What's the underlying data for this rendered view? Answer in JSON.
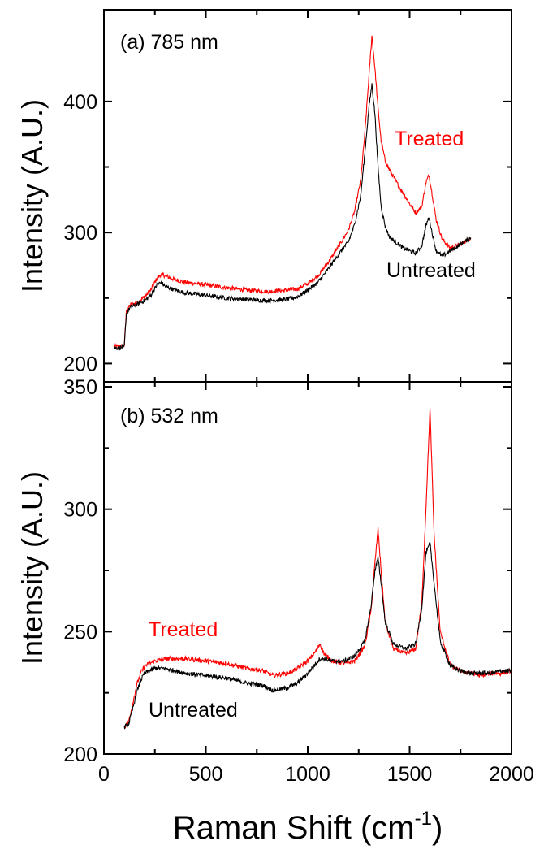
{
  "chart_data": [
    {
      "type": "line",
      "panel_label": "(a) 785 nm",
      "ylabel": "Intensity (A.U.)",
      "xlim": [
        0,
        2000
      ],
      "ylim": [
        186,
        470
      ],
      "yticks": [
        200,
        300,
        400
      ],
      "ytick_labels": [
        "200",
        "300",
        "400"
      ],
      "xticks": [
        0,
        500,
        1000,
        1500,
        2000
      ],
      "grid": false,
      "colors": {
        "Treated": "#ff0000",
        "Untreated": "#000000"
      },
      "series": [
        {
          "name": "Treated",
          "color": "#ff0000",
          "x": [
            50,
            80,
            100,
            110,
            130,
            160,
            200,
            230,
            260,
            280,
            300,
            350,
            400,
            500,
            600,
            700,
            800,
            900,
            950,
            1000,
            1050,
            1100,
            1150,
            1200,
            1230,
            1260,
            1280,
            1300,
            1315,
            1330,
            1345,
            1360,
            1380,
            1400,
            1430,
            1460,
            1500,
            1530,
            1560,
            1580,
            1595,
            1610,
            1630,
            1660,
            1700,
            1750,
            1800
          ],
          "y": [
            213,
            213,
            214,
            240,
            245,
            246,
            251,
            256,
            265,
            268,
            267,
            264,
            262,
            260,
            258,
            256,
            255,
            256,
            257,
            261,
            267,
            277,
            289,
            302,
            316,
            340,
            375,
            418,
            450,
            425,
            395,
            370,
            355,
            348,
            340,
            332,
            322,
            315,
            320,
            338,
            344,
            330,
            310,
            295,
            288,
            291,
            296
          ]
        },
        {
          "name": "Untreated",
          "color": "#000000",
          "x": [
            50,
            80,
            100,
            110,
            130,
            160,
            200,
            230,
            260,
            280,
            300,
            350,
            400,
            500,
            600,
            700,
            800,
            900,
            950,
            1000,
            1050,
            1100,
            1150,
            1200,
            1230,
            1260,
            1280,
            1300,
            1315,
            1330,
            1345,
            1360,
            1380,
            1400,
            1430,
            1460,
            1500,
            1530,
            1560,
            1580,
            1595,
            1610,
            1630,
            1660,
            1700,
            1750,
            1800
          ],
          "y": [
            212,
            212,
            213,
            238,
            243,
            245,
            248,
            252,
            260,
            262,
            259,
            256,
            254,
            252,
            250,
            249,
            248,
            249,
            251,
            256,
            262,
            272,
            283,
            293,
            306,
            328,
            360,
            395,
            413,
            390,
            350,
            320,
            305,
            297,
            293,
            289,
            286,
            284,
            290,
            305,
            312,
            300,
            286,
            282,
            286,
            291,
            296
          ]
        }
      ]
    },
    {
      "type": "line",
      "panel_label": "(b) 532 nm",
      "ylabel": "Intensity (A.U.)",
      "xlabel": "Raman Shift (cm",
      "xlabel_sup": "-1",
      "xlabel_end": ")",
      "xlim": [
        0,
        2000
      ],
      "ylim": [
        200,
        352
      ],
      "yticks": [
        200,
        250,
        300,
        350
      ],
      "ytick_labels": [
        "200",
        "250",
        "300",
        "350"
      ],
      "xticks": [
        0,
        500,
        1000,
        1500,
        2000
      ],
      "xtick_labels": [
        "0",
        "500",
        "1000",
        "1500",
        "2000"
      ],
      "grid": false,
      "colors": {
        "Treated": "#ff0000",
        "Untreated": "#000000"
      },
      "series": [
        {
          "name": "Treated",
          "color": "#ff0000",
          "x": [
            100,
            120,
            140,
            160,
            180,
            200,
            250,
            300,
            400,
            500,
            600,
            700,
            780,
            830,
            900,
            950,
            1000,
            1040,
            1060,
            1080,
            1120,
            1180,
            1230,
            1280,
            1310,
            1330,
            1345,
            1360,
            1380,
            1420,
            1480,
            1530,
            1560,
            1580,
            1600,
            1620,
            1650,
            1700,
            1750,
            1800,
            1850,
            1900,
            1950,
            2000
          ],
          "y": [
            211,
            213,
            220,
            228,
            233,
            236,
            238,
            239,
            239,
            238,
            237,
            235,
            234,
            232,
            233,
            235,
            238,
            242,
            245,
            241,
            238,
            237,
            238,
            244,
            258,
            278,
            292,
            275,
            254,
            243,
            241,
            243,
            262,
            300,
            341,
            290,
            250,
            236,
            234,
            233,
            232,
            233,
            233,
            234
          ]
        },
        {
          "name": "Untreated",
          "color": "#000000",
          "x": [
            100,
            120,
            140,
            160,
            180,
            200,
            250,
            300,
            400,
            500,
            600,
            700,
            780,
            830,
            900,
            950,
            1000,
            1040,
            1060,
            1080,
            1120,
            1180,
            1230,
            1280,
            1310,
            1330,
            1345,
            1360,
            1380,
            1420,
            1480,
            1530,
            1560,
            1580,
            1600,
            1620,
            1650,
            1700,
            1750,
            1800,
            1850,
            1900,
            1950,
            2000
          ],
          "y": [
            211,
            212,
            218,
            225,
            230,
            233,
            235,
            235,
            233,
            232,
            231,
            229,
            228,
            226,
            227,
            229,
            233,
            237,
            239,
            239,
            238,
            238,
            240,
            246,
            260,
            275,
            280,
            270,
            254,
            245,
            243,
            245,
            260,
            282,
            286,
            270,
            246,
            236,
            234,
            233,
            233,
            233,
            234,
            234
          ]
        }
      ]
    }
  ]
}
